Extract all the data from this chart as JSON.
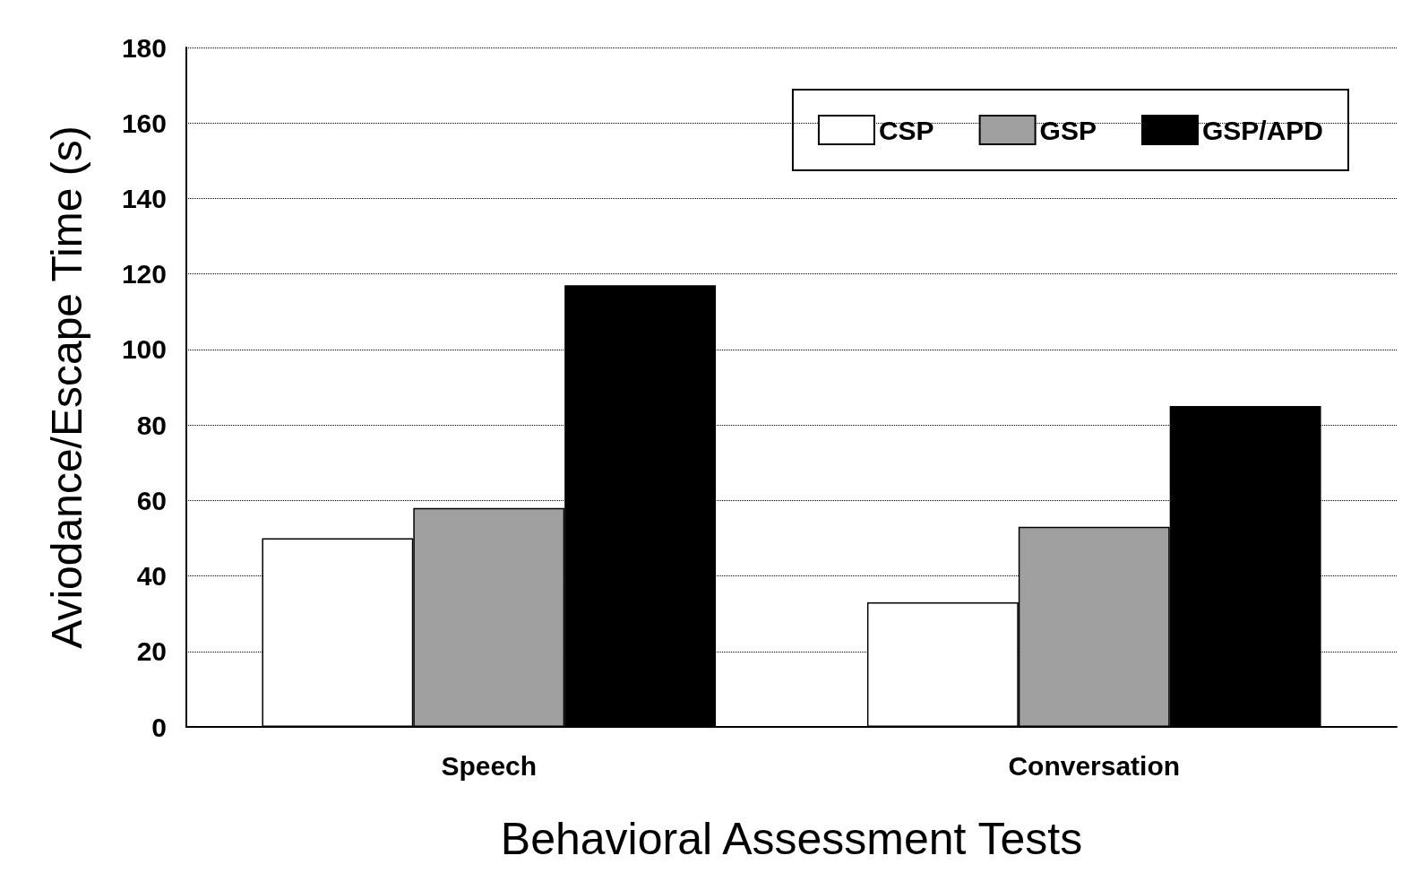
{
  "chart_data": {
    "type": "bar",
    "xlabel": "Behavioral Assessment Tests",
    "ylabel": "Aviodance/Escape Time (s)",
    "categories": [
      "Speech",
      "Conversation"
    ],
    "series": [
      {
        "name": "CSP",
        "color": "#ffffff",
        "values": [
          50,
          33
        ]
      },
      {
        "name": "GSP",
        "color": "#a0a0a0",
        "values": [
          58,
          53
        ]
      },
      {
        "name": "GSP/APD",
        "color": "#000000",
        "values": [
          117,
          85
        ]
      }
    ],
    "ylim": [
      0,
      180
    ],
    "yticks": [
      0,
      20,
      40,
      60,
      80,
      100,
      120,
      140,
      160,
      180
    ],
    "grid": "y",
    "legend": "top right"
  }
}
